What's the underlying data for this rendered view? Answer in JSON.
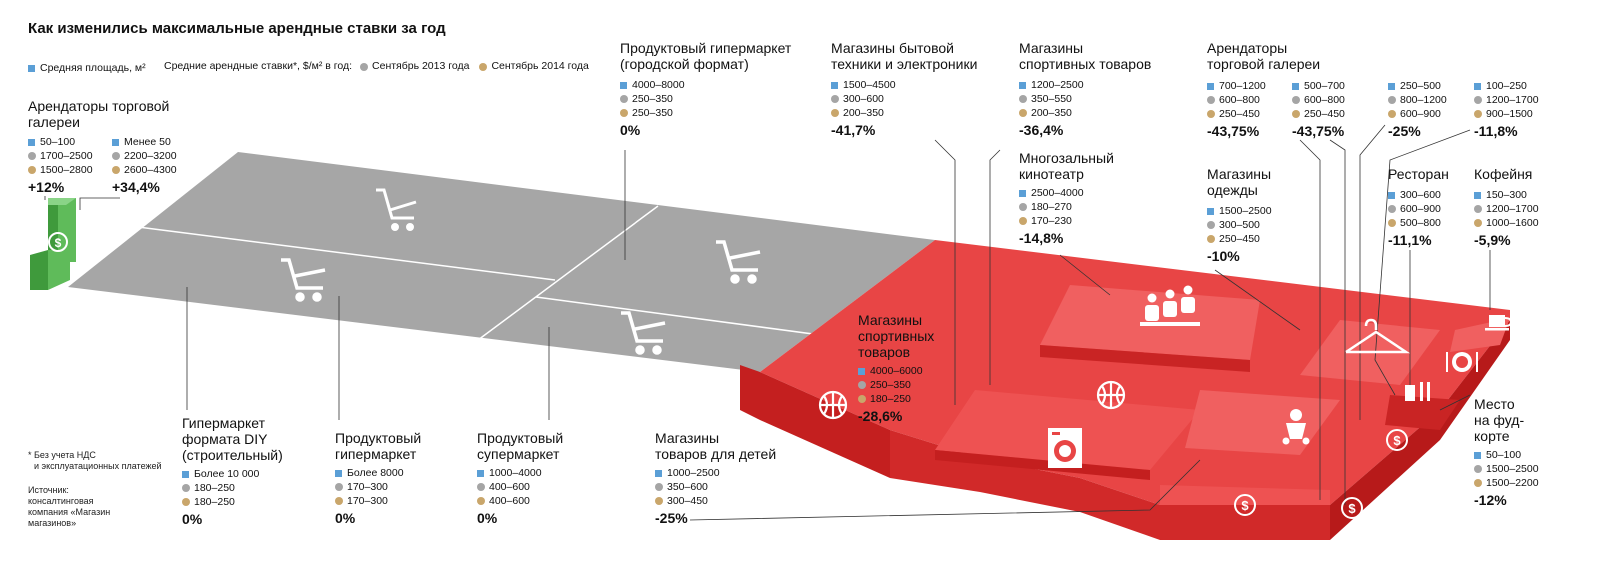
{
  "title": "Как изменились максимальные арендные ставки за год",
  "legend": {
    "area_label": "Средняя площадь, м²",
    "rates_label": "Средние арендные ставки*, $/м² в год:",
    "sep2013": "Сентябрь 2013 года",
    "sep2014": "Сентябрь 2014 года"
  },
  "colors": {
    "area": "#5b9fd6",
    "y2013": "#a5a5a5",
    "y2014": "#c9a66b",
    "red": "#e52e2e",
    "gray": "#a6a6a6",
    "green": "#4daa4a"
  },
  "icons": [
    "cart-icon",
    "dollar-icon",
    "basketball-icon",
    "washing-machine-icon",
    "cinema-icon",
    "baby-icon",
    "hanger-icon",
    "plate-icon",
    "food-court-icon",
    "coffee-cup-icon"
  ],
  "gallery_left": {
    "name": "Арендаторы торговой галереи",
    "a": {
      "area": "50–100",
      "r2013": "1700–2500",
      "r2014": "1500–2800",
      "pct": "+12%"
    },
    "b": {
      "area": "Менее 50",
      "r2013": "2200–3200",
      "r2014": "2600–4300",
      "pct": "+34,4%"
    }
  },
  "segments": {
    "diy": {
      "name1": "Гипермаркет",
      "name2": "формата DIY",
      "name3": "(строительный)",
      "area": "Более 10 000",
      "r2013": "180–250",
      "r2014": "180–250",
      "pct": "0%"
    },
    "grocery_hyper": {
      "name1": "Продуктовый",
      "name2": "гипермаркет",
      "area": "Более 8000",
      "r2013": "170–300",
      "r2014": "170–300",
      "pct": "0%"
    },
    "grocery_super": {
      "name1": "Продуктовый",
      "name2": "супермаркет",
      "area": "1000–4000",
      "r2013": "400–600",
      "r2014": "400–600",
      "pct": "0%"
    },
    "city_hyper": {
      "name1": "Продуктовый гипермаркет",
      "name2": "(городской формат)",
      "area": "4000–8000",
      "r2013": "250–350",
      "r2014": "250–350",
      "pct": "0%"
    },
    "electronics": {
      "name1": "Магазины бытовой",
      "name2": "техники и электроники",
      "area": "1500–4500",
      "r2013": "300–600",
      "r2014": "200–350",
      "pct": "-41,7%"
    },
    "sports_small": {
      "name1": "Магазины",
      "name2": "спортивных товаров",
      "area": "1200–2500",
      "r2013": "350–550",
      "r2014": "200–350",
      "pct": "-36,4%"
    },
    "cinema": {
      "name1": "Многозальный",
      "name2": "кинотеатр",
      "area": "2500–4000",
      "r2013": "180–270",
      "r2014": "170–230",
      "pct": "-14,8%"
    },
    "gallery_right": {
      "name1": "Арендаторы",
      "name2": "торговой галереи"
    },
    "gallery_r1": {
      "area": "700–1200",
      "r2013": "600–800",
      "r2014": "250–450",
      "pct": "-43,75%"
    },
    "gallery_r2": {
      "area": "500–700",
      "r2013": "600–800",
      "r2014": "250–450",
      "pct": "-43,75%"
    },
    "gallery_r3": {
      "area": "250–500",
      "r2013": "800–1200",
      "r2014": "600–900",
      "pct": "-25%"
    },
    "gallery_r4": {
      "area": "100–250",
      "r2013": "1200–1700",
      "r2014": "900–1500",
      "pct": "-11,8%"
    },
    "clothes": {
      "name1": "Магазины",
      "name2": "одежды",
      "area": "1500–2500",
      "r2013": "300–500",
      "r2014": "250–450",
      "pct": "-10%"
    },
    "restaurant": {
      "name1": "Ресторан",
      "area": "300–600",
      "r2013": "600–900",
      "r2014": "500–800",
      "pct": "-11,1%"
    },
    "coffee": {
      "name1": "Кофейня",
      "area": "150–300",
      "r2013": "1200–1700",
      "r2014": "1000–1600",
      "pct": "-5,9%"
    },
    "sports_big": {
      "name1": "Магазины",
      "name2": "спортивных",
      "name3": "товаров",
      "area": "4000–6000",
      "r2013": "250–350",
      "r2014": "180–250",
      "pct": "-28,6%"
    },
    "kids": {
      "name1": "Магазины",
      "name2": "товаров для детей",
      "area": "1000–2500",
      "r2013": "350–600",
      "r2014": "300–450",
      "pct": "-25%"
    },
    "foodcourt": {
      "name1": "Место",
      "name2": "на фуд-",
      "name3": "корте",
      "area": "50–100",
      "r2013": "1500–2500",
      "r2014": "1500–2200",
      "pct": "-12%"
    }
  },
  "notes": {
    "asterisk1": "* Без учета НДС",
    "asterisk2": "и эксплуатационных платежей",
    "src1": "Источник:",
    "src2": "консалтинговая",
    "src3": "компания «Магазин",
    "src4": "магазинов»"
  }
}
